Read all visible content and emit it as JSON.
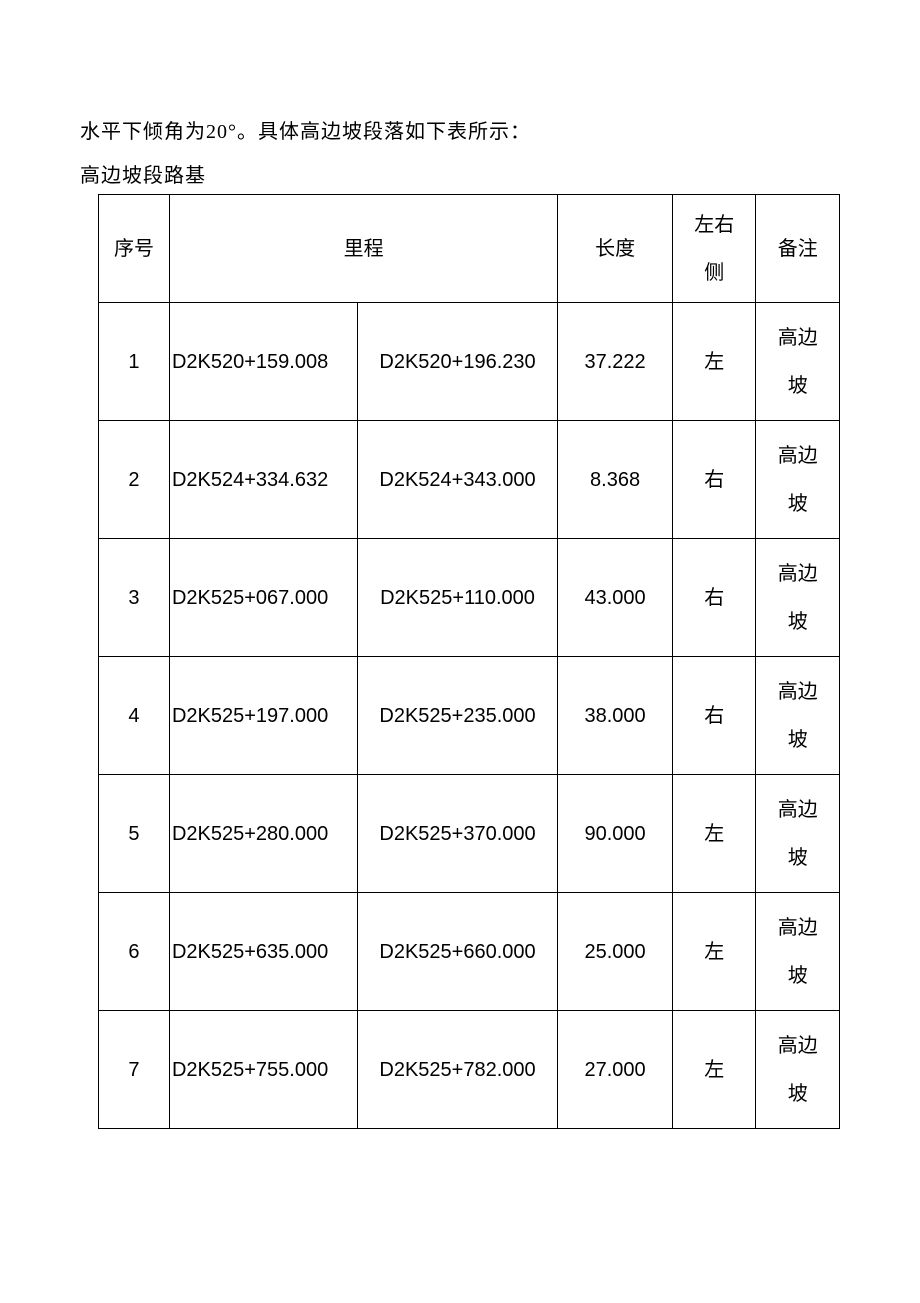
{
  "intro_text": "水平下倾角为20°。具体高边坡段落如下表所示：",
  "table_title": "高边坡段路基",
  "table": {
    "columns": [
      "序号",
      "里程",
      "长度",
      "左右侧",
      "备注"
    ],
    "headers": {
      "index": "序号",
      "mileage": "里程",
      "length": "长度",
      "side_line1": "左右",
      "side_line2": "侧",
      "remark": "备注"
    },
    "col_widths": {
      "index": 68,
      "mileage_start": 180,
      "mileage_end": 192,
      "length": 110,
      "side": 80,
      "remark": 80
    },
    "border_color": "#000000",
    "background_color": "#ffffff",
    "text_color": "#000000",
    "font_size": 20,
    "rows": [
      {
        "index": "1",
        "start": "D2K520+159.008",
        "end": "D2K520+196.230",
        "length": "37.222",
        "side": "左",
        "remark_line1": "高边",
        "remark_line2": "坡"
      },
      {
        "index": "2",
        "start": "D2K524+334.632",
        "end": "D2K524+343.000",
        "length": "8.368",
        "side": "右",
        "remark_line1": "高边",
        "remark_line2": "坡"
      },
      {
        "index": "3",
        "start": "D2K525+067.000",
        "end": "D2K525+110.000",
        "length": "43.000",
        "side": "右",
        "remark_line1": "高边",
        "remark_line2": "坡"
      },
      {
        "index": "4",
        "start": "D2K525+197.000",
        "end": "D2K525+235.000",
        "length": "38.000",
        "side": "右",
        "remark_line1": "高边",
        "remark_line2": "坡"
      },
      {
        "index": "5",
        "start": "D2K525+280.000",
        "end": "D2K525+370.000",
        "length": "90.000",
        "side": "左",
        "remark_line1": "高边",
        "remark_line2": "坡"
      },
      {
        "index": "6",
        "start": "D2K525+635.000",
        "end": "D2K525+660.000",
        "length": "25.000",
        "side": "左",
        "remark_line1": "高边",
        "remark_line2": "坡"
      },
      {
        "index": "7",
        "start": "D2K525+755.000",
        "end": "D2K525+782.000",
        "length": "27.000",
        "side": "左",
        "remark_line1": "高边",
        "remark_line2": "坡"
      }
    ]
  }
}
